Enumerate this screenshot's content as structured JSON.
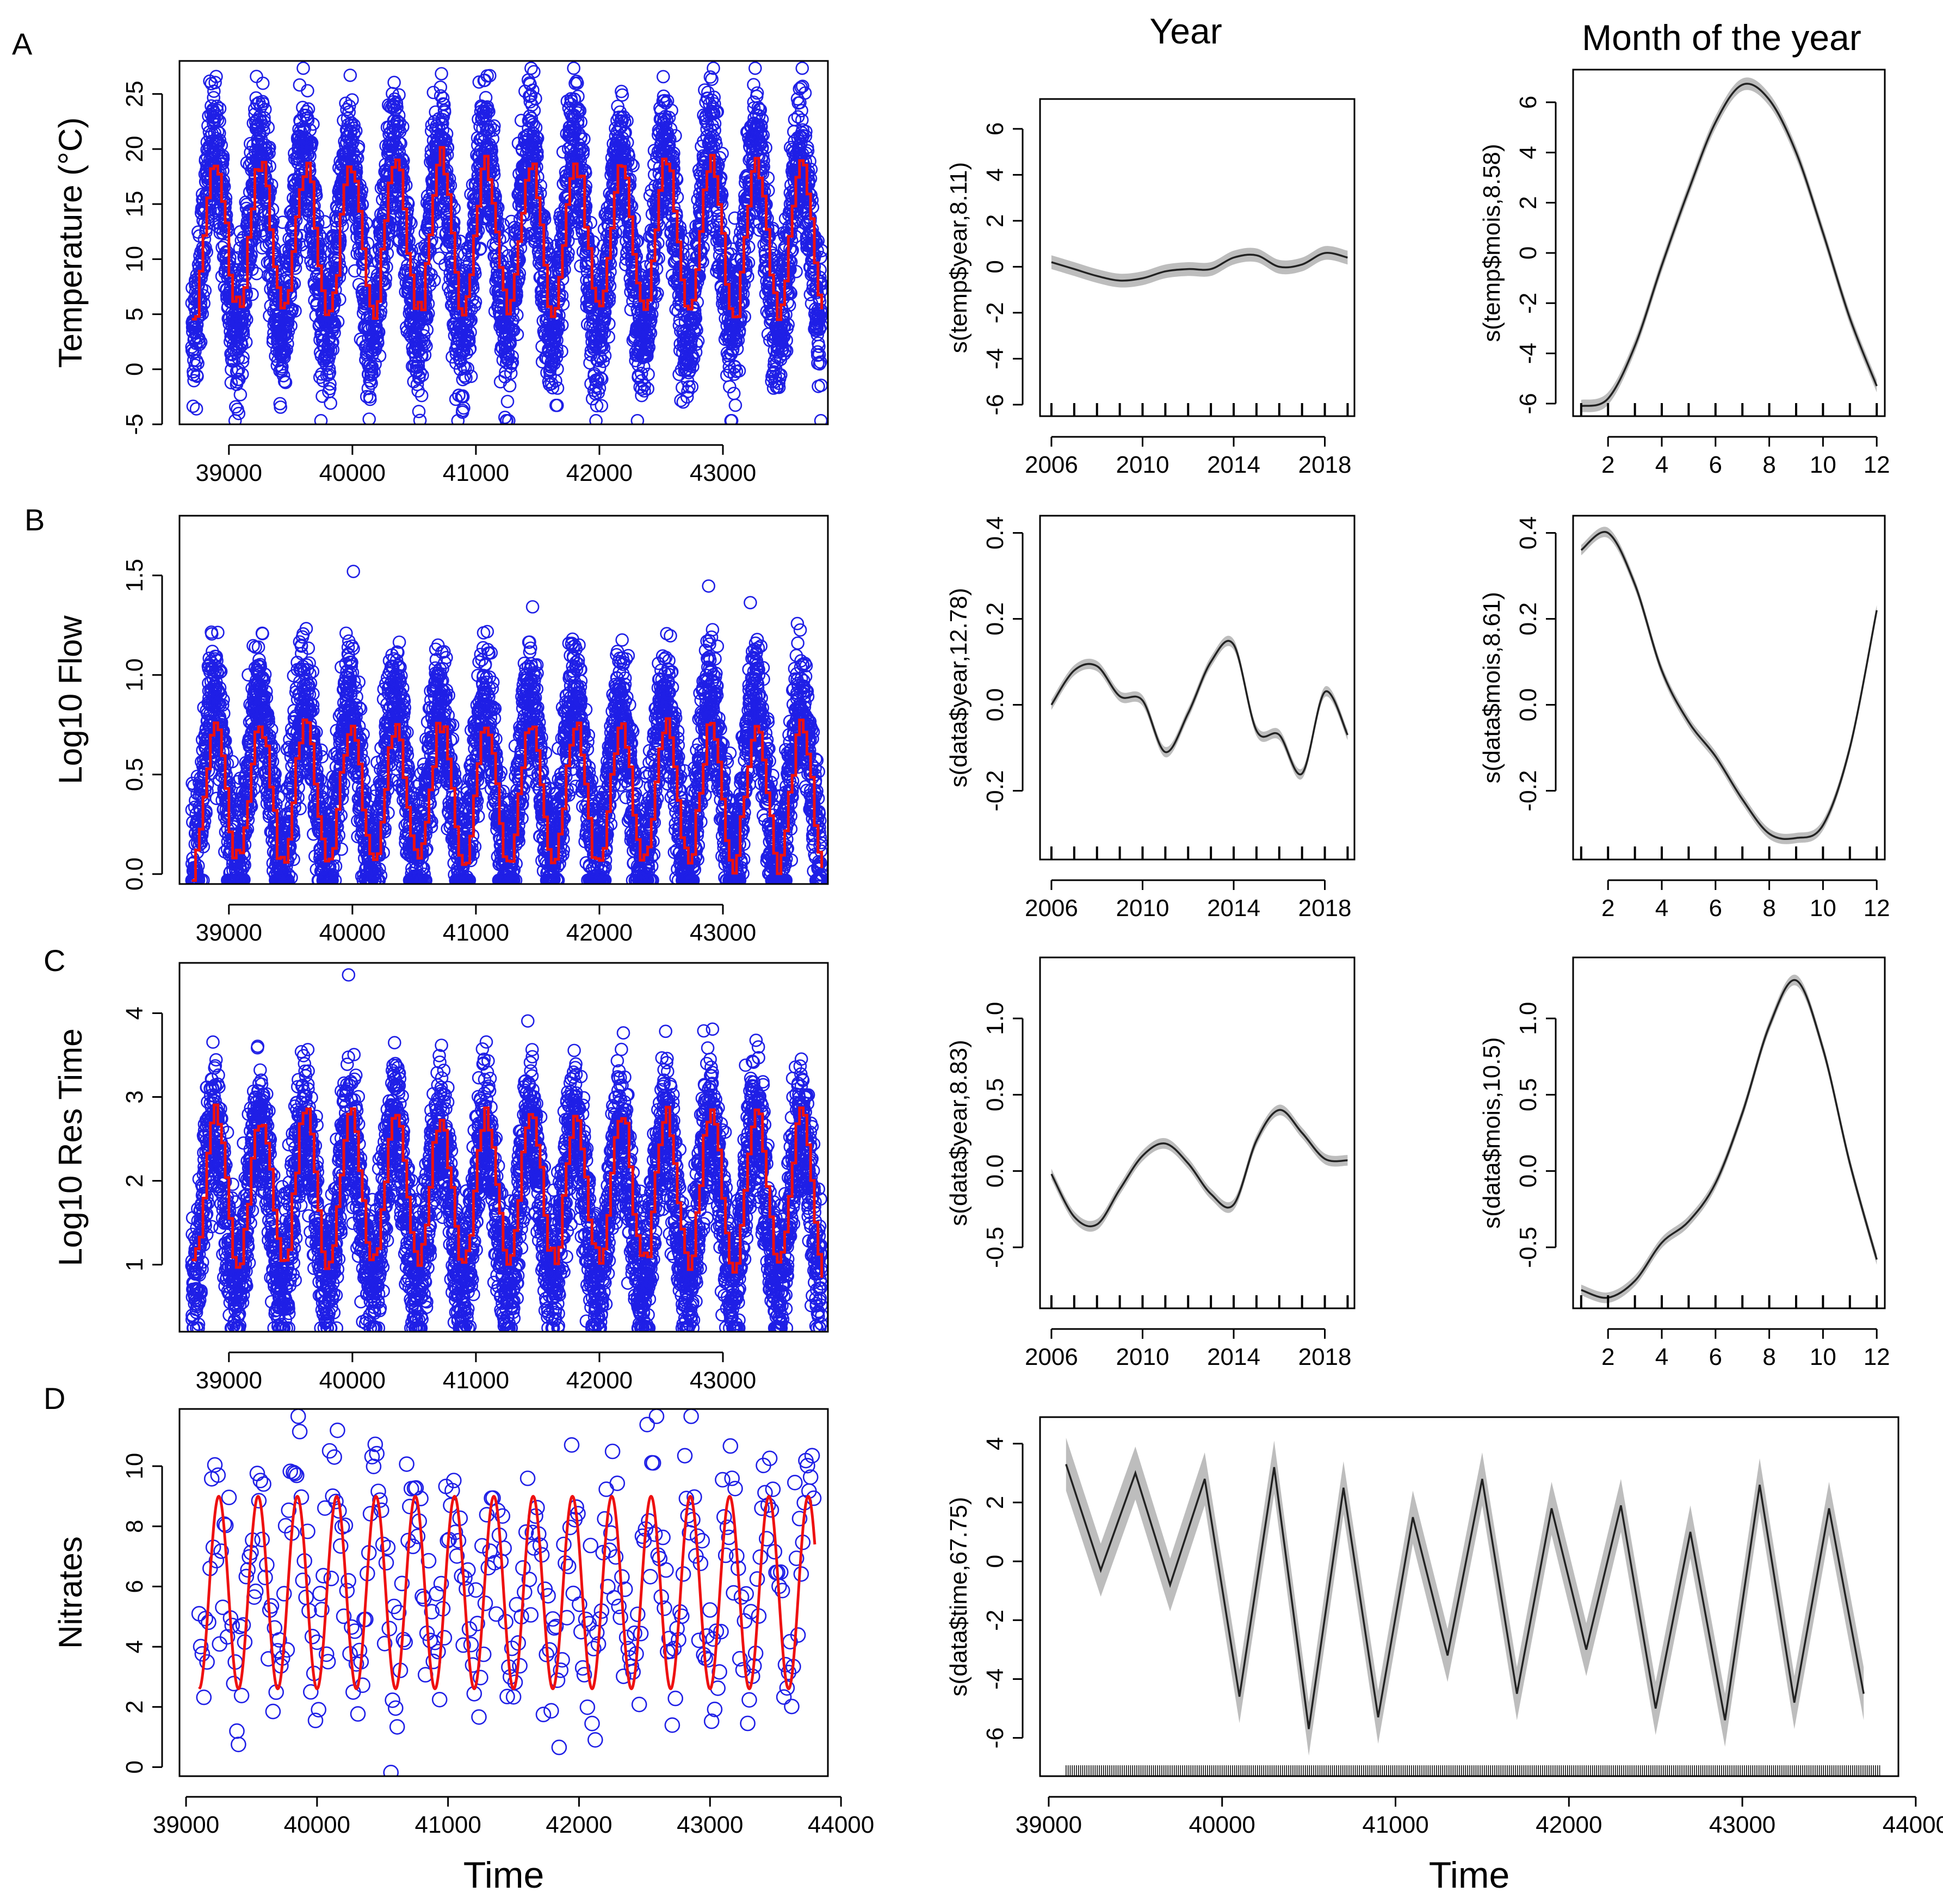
{
  "figure": {
    "panel_letters": [
      "A",
      "B",
      "C",
      "D"
    ],
    "column_titles": {
      "year": "Year",
      "month": "Month of the year"
    },
    "colors": {
      "points": "#1f1fe6",
      "fit": "#ee1111",
      "smooth": "#222222",
      "band": "#bdbdbd",
      "axis": "#000000"
    }
  },
  "chart_data": [
    {
      "id": "A-timeseries",
      "type": "scatter",
      "panel": "A",
      "title": "",
      "xlabel": "",
      "ylabel": "Temperature (°C)",
      "xlim": [
        38600,
        43850
      ],
      "ylim": [
        -5,
        28
      ],
      "xticks": [
        "39000",
        "40000",
        "41000",
        "42000",
        "43000"
      ],
      "yticks": [
        "-5",
        "0",
        "5",
        "10",
        "15",
        "20",
        "25"
      ],
      "series": [
        {
          "name": "observed",
          "kind": "points",
          "period_days": 365,
          "mean": 11.5,
          "amplitude": 8.5,
          "noise": 4.2,
          "start": 38700,
          "end": 43800,
          "step": 1
        },
        {
          "name": "fitted",
          "kind": "step",
          "period_days": 365,
          "mean": 12,
          "amplitude": 6.8,
          "start": 38700,
          "end": 43800,
          "step": 30
        }
      ]
    },
    {
      "id": "A-year",
      "type": "line",
      "panel": "A",
      "title": "",
      "xlabel": "",
      "ylabel": "s(temp$year,8.11)",
      "xlim": [
        2005.5,
        2019.3
      ],
      "ylim": [
        -6.5,
        7.3
      ],
      "xticks": [
        "2006",
        "2010",
        "2014",
        "2018"
      ],
      "yticks": [
        "-6",
        "-4",
        "-2",
        "0",
        "2",
        "4",
        "6"
      ],
      "rug": [
        2006,
        2007,
        2008,
        2009,
        2010,
        2011,
        2012,
        2013,
        2014,
        2015,
        2016,
        2017,
        2018,
        2019
      ],
      "x": [
        2006,
        2007,
        2008,
        2009,
        2010,
        2011,
        2012,
        2013,
        2014,
        2015,
        2016,
        2017,
        2018,
        2019
      ],
      "values": [
        0.2,
        -0.1,
        -0.4,
        -0.6,
        -0.5,
        -0.2,
        -0.1,
        -0.1,
        0.4,
        0.5,
        0.0,
        0.1,
        0.6,
        0.4
      ],
      "se": 0.3
    },
    {
      "id": "A-month",
      "type": "line",
      "panel": "A",
      "title": "",
      "xlabel": "",
      "ylabel": "s(temp$mois,8.58)",
      "xlim": [
        0.7,
        12.3
      ],
      "ylim": [
        -6.5,
        7.3
      ],
      "xticks": [
        "2",
        "4",
        "6",
        "8",
        "10",
        "12"
      ],
      "yticks": [
        "-6",
        "-4",
        "-2",
        "0",
        "2",
        "4",
        "6"
      ],
      "rug": [
        1,
        2,
        3,
        4,
        5,
        6,
        7,
        8,
        9,
        10,
        11,
        12
      ],
      "x": [
        1,
        2,
        3,
        4,
        5,
        6,
        7,
        8,
        9,
        10,
        11,
        12
      ],
      "values": [
        -6.1,
        -5.8,
        -3.7,
        -0.5,
        2.5,
        5.2,
        6.7,
        6.1,
        4.0,
        0.8,
        -2.6,
        -5.3
      ],
      "se": 0.25
    },
    {
      "id": "B-timeseries",
      "type": "scatter",
      "panel": "B",
      "title": "",
      "xlabel": "",
      "ylabel": "Log10 Flow",
      "xlim": [
        38600,
        43850
      ],
      "ylim": [
        -0.05,
        1.8
      ],
      "xticks": [
        "39000",
        "40000",
        "41000",
        "42000",
        "43000"
      ],
      "yticks": [
        "0.0",
        "0.5",
        "1.0",
        "1.5"
      ],
      "series": [
        {
          "name": "observed",
          "kind": "points",
          "period_days": 365,
          "mean": 0.45,
          "amplitude": 0.42,
          "noise": 0.22,
          "start": 38700,
          "end": 43800,
          "step": 1
        },
        {
          "name": "fitted",
          "kind": "step",
          "period_days": 365,
          "mean": 0.4,
          "amplitude": 0.35,
          "start": 38700,
          "end": 43800,
          "step": 30
        }
      ]
    },
    {
      "id": "B-year",
      "type": "line",
      "panel": "B",
      "title": "",
      "xlabel": "",
      "ylabel": "s(data$year,12.78)",
      "xlim": [
        2005.5,
        2019.3
      ],
      "ylim": [
        -0.36,
        0.44
      ],
      "xticks": [
        "2006",
        "2010",
        "2014",
        "2018"
      ],
      "yticks": [
        "-0.2",
        "0.0",
        "0.2",
        "0.4"
      ],
      "rug": [
        2006,
        2007,
        2008,
        2009,
        2010,
        2011,
        2012,
        2013,
        2014,
        2015,
        2016,
        2017,
        2018,
        2019
      ],
      "x": [
        2006,
        2007,
        2008,
        2009,
        2010,
        2011,
        2012,
        2013,
        2014,
        2015,
        2016,
        2017,
        2018,
        2019
      ],
      "values": [
        0.0,
        0.08,
        0.09,
        0.02,
        0.01,
        -0.11,
        -0.02,
        0.1,
        0.14,
        -0.06,
        -0.07,
        -0.16,
        0.03,
        -0.07
      ],
      "se": 0.012
    },
    {
      "id": "B-month",
      "type": "line",
      "panel": "B",
      "title": "",
      "xlabel": "",
      "ylabel": "s(data$mois,8.61)",
      "xlim": [
        0.7,
        12.3
      ],
      "ylim": [
        -0.36,
        0.44
      ],
      "xticks": [
        "2",
        "4",
        "6",
        "8",
        "10",
        "12"
      ],
      "yticks": [
        "-0.2",
        "0.0",
        "0.2",
        "0.4"
      ],
      "rug": [
        1,
        2,
        3,
        4,
        5,
        6,
        7,
        8,
        9,
        10,
        11,
        12
      ],
      "x": [
        1,
        2,
        3,
        4,
        5,
        6,
        7,
        8,
        9,
        10,
        11,
        12
      ],
      "values": [
        0.36,
        0.4,
        0.28,
        0.08,
        -0.04,
        -0.12,
        -0.22,
        -0.3,
        -0.31,
        -0.28,
        -0.1,
        0.22
      ],
      "se": 0.012
    },
    {
      "id": "C-timeseries",
      "type": "scatter",
      "panel": "C",
      "title": "",
      "xlabel": "",
      "ylabel": "Log10 Res Time",
      "xlim": [
        38600,
        43850
      ],
      "ylim": [
        0.2,
        4.6
      ],
      "xticks": [
        "39000",
        "40000",
        "41000",
        "42000",
        "43000"
      ],
      "yticks": [
        "1",
        "2",
        "3",
        "4"
      ],
      "series": [
        {
          "name": "observed",
          "kind": "points",
          "period_days": 365,
          "mean": 1.7,
          "amplitude": 1.0,
          "noise": 0.55,
          "start": 38700,
          "end": 43800,
          "step": 1
        },
        {
          "name": "fitted",
          "kind": "step",
          "period_days": 365,
          "mean": 1.9,
          "amplitude": 0.9,
          "start": 38700,
          "end": 43800,
          "step": 30
        }
      ]
    },
    {
      "id": "C-year",
      "type": "line",
      "panel": "C",
      "title": "",
      "xlabel": "",
      "ylabel": "s(data$year,8.83)",
      "xlim": [
        2005.5,
        2019.3
      ],
      "ylim": [
        -0.9,
        1.4
      ],
      "xticks": [
        "2006",
        "2010",
        "2014",
        "2018"
      ],
      "yticks": [
        "-0.5",
        "0.0",
        "0.5",
        "1.0"
      ],
      "rug": [
        2006,
        2007,
        2008,
        2009,
        2010,
        2011,
        2012,
        2013,
        2014,
        2015,
        2016,
        2017,
        2018,
        2019
      ],
      "x": [
        2006,
        2007,
        2008,
        2009,
        2010,
        2011,
        2012,
        2013,
        2014,
        2015,
        2016,
        2017,
        2018,
        2019
      ],
      "values": [
        -0.02,
        -0.3,
        -0.35,
        -0.12,
        0.1,
        0.18,
        0.05,
        -0.15,
        -0.22,
        0.2,
        0.4,
        0.25,
        0.08,
        0.07
      ],
      "se": 0.035
    },
    {
      "id": "C-month",
      "type": "line",
      "panel": "C",
      "title": "",
      "xlabel": "",
      "ylabel": "s(data$mois,10.5)",
      "xlim": [
        0.7,
        12.3
      ],
      "ylim": [
        -0.9,
        1.4
      ],
      "xticks": [
        "2",
        "4",
        "6",
        "8",
        "10",
        "12"
      ],
      "yticks": [
        "-0.5",
        "0.0",
        "0.5",
        "1.0"
      ],
      "rug": [
        1,
        2,
        3,
        4,
        5,
        6,
        7,
        8,
        9,
        10,
        11,
        12
      ],
      "x": [
        1,
        2,
        3,
        4,
        5,
        6,
        7,
        8,
        9,
        10,
        11,
        12
      ],
      "values": [
        -0.78,
        -0.83,
        -0.72,
        -0.47,
        -0.33,
        -0.08,
        0.38,
        0.95,
        1.25,
        0.8,
        0.05,
        -0.58
      ],
      "se": 0.035
    },
    {
      "id": "D-timeseries",
      "type": "scatter",
      "panel": "D",
      "title": "",
      "xlabel": "Time",
      "ylabel": "Nitrates",
      "xlim": [
        38950,
        43900
      ],
      "ylim": [
        -0.3,
        11.9
      ],
      "xticks": [
        "39000",
        "40000",
        "41000",
        "42000",
        "43000",
        "44000"
      ],
      "yticks": [
        "0",
        "2",
        "4",
        "6",
        "8",
        "10"
      ],
      "series": [
        {
          "name": "observed",
          "kind": "points",
          "period_days": 300,
          "mean": 6.0,
          "amplitude": 2.8,
          "noise": 2.0,
          "start": 39100,
          "end": 43800,
          "step": 12
        },
        {
          "name": "fitted",
          "kind": "line",
          "period_days": 300,
          "mean": 5.8,
          "amplitude": 3.2,
          "start": 39100,
          "end": 43800,
          "step": 10
        }
      ]
    },
    {
      "id": "D-time",
      "type": "line",
      "panel": "D",
      "title": "",
      "xlabel": "Time",
      "ylabel": "s(data$time,67.75)",
      "xlim": [
        38950,
        43900
      ],
      "ylim": [
        -7.3,
        4.9
      ],
      "xticks": [
        "39000",
        "40000",
        "41000",
        "42000",
        "43000",
        "44000"
      ],
      "yticks": [
        "-6",
        "-4",
        "-2",
        "0",
        "2",
        "4"
      ],
      "rug_range": [
        39100,
        43800
      ],
      "x": [
        39100,
        39300,
        39500,
        39700,
        39900,
        40100,
        40300,
        40500,
        40700,
        40900,
        41100,
        41300,
        41500,
        41700,
        41900,
        42100,
        42300,
        42500,
        42700,
        42900,
        43100,
        43300,
        43500,
        43700
      ],
      "values": [
        3.3,
        -0.3,
        3.0,
        -0.8,
        2.8,
        -4.6,
        3.2,
        -5.7,
        2.5,
        -5.3,
        1.5,
        -3.2,
        2.8,
        -4.5,
        1.8,
        -3.0,
        1.9,
        -5.0,
        1.0,
        -5.4,
        2.6,
        -4.8,
        1.8,
        -4.5
      ],
      "se": 0.9
    }
  ]
}
